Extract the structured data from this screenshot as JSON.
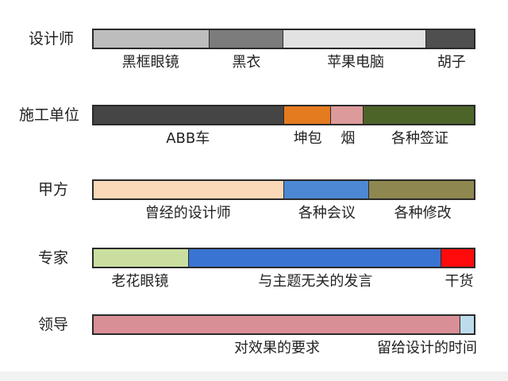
{
  "chart_data": {
    "type": "bar",
    "orientation": "horizontal",
    "stacked": true,
    "title": "",
    "xlabel": "",
    "ylabel": "",
    "xlim": [
      0,
      100
    ],
    "rows": [
      {
        "name": "设计师",
        "segments": [
          {
            "label": "黑框眼镜",
            "value": 30.5,
            "color": "#bdbdbd"
          },
          {
            "label": "黑衣",
            "value": 19.5,
            "color": "#7c7c7c"
          },
          {
            "label": "苹果电脑",
            "value": 37.5,
            "color": "#e2e2e2"
          },
          {
            "label": "胡子",
            "value": 12.5,
            "color": "#4f4f4f"
          }
        ]
      },
      {
        "name": "施工单位",
        "segments": [
          {
            "label": "ABB车",
            "value": 50,
            "color": "#454545"
          },
          {
            "label": "坤包",
            "value": 12.5,
            "color": "#e57b1f"
          },
          {
            "label": "烟",
            "value": 8.5,
            "color": "#dc9a9a"
          },
          {
            "label": "各种签证",
            "value": 29,
            "color": "#4d6429"
          }
        ]
      },
      {
        "name": "甲方",
        "segments": [
          {
            "label": "曾经的设计师",
            "value": 50,
            "color": "#f9d9b7"
          },
          {
            "label": "各种会议",
            "value": 22.5,
            "color": "#4c88d3"
          },
          {
            "label": "各种修改",
            "value": 27.5,
            "color": "#8f8750"
          }
        ]
      },
      {
        "name": "专家",
        "segments": [
          {
            "label": "老花眼镜",
            "value": 25,
            "color": "#cadf9f"
          },
          {
            "label": "与主题无关的发言",
            "value": 66.5,
            "color": "#3a74d3"
          },
          {
            "label": "干货",
            "value": 8.5,
            "color": "#ff0b0b"
          }
        ]
      },
      {
        "name": "领导",
        "segments": [
          {
            "label": "对效果的要求",
            "value": 96.5,
            "color": "#d98f96"
          },
          {
            "label": "留给设计的时间",
            "value": 3.5,
            "color": "#bcdcec"
          }
        ]
      }
    ]
  }
}
